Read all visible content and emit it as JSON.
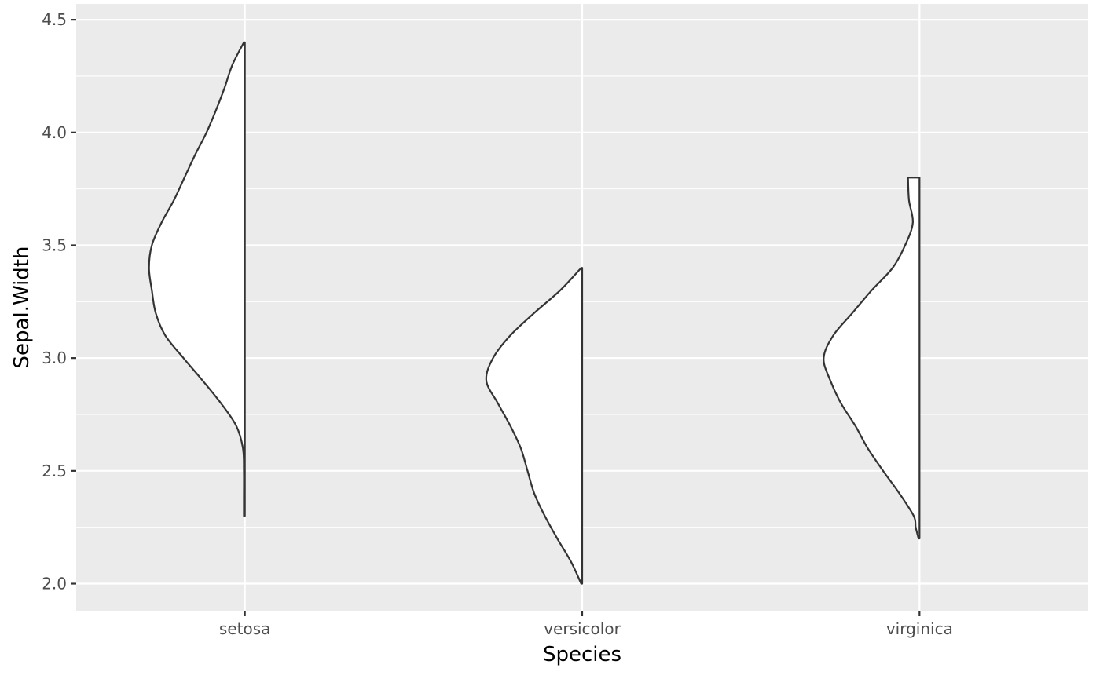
{
  "chart_data": {
    "type": "half-violin",
    "xlabel": "Species",
    "ylabel": "Sepal.Width",
    "categories": [
      "setosa",
      "versicolor",
      "virginica"
    ],
    "ylim": [
      1.88,
      4.57
    ],
    "yticks": [
      2.0,
      2.5,
      3.0,
      3.5,
      4.0,
      4.5
    ],
    "ytick_labels": [
      "2.0",
      "2.5",
      "3.0",
      "3.5",
      "4.0",
      "4.5"
    ],
    "grid": true,
    "panel_background": "#ebebeb",
    "fill_color": "#ffffff",
    "outline_color": "#333333",
    "series": [
      {
        "category": "setosa",
        "min": 2.3,
        "max": 4.4,
        "density_profile": [
          [
            2.3,
            0.01
          ],
          [
            2.38,
            0.01
          ],
          [
            2.5,
            0.01
          ],
          [
            2.6,
            0.02
          ],
          [
            2.7,
            0.09
          ],
          [
            2.8,
            0.25
          ],
          [
            2.9,
            0.44
          ],
          [
            3.0,
            0.64
          ],
          [
            3.1,
            0.83
          ],
          [
            3.2,
            0.93
          ],
          [
            3.3,
            0.97
          ],
          [
            3.4,
            1.0
          ],
          [
            3.5,
            0.97
          ],
          [
            3.6,
            0.87
          ],
          [
            3.7,
            0.74
          ],
          [
            3.8,
            0.63
          ],
          [
            3.9,
            0.52
          ],
          [
            4.0,
            0.4
          ],
          [
            4.1,
            0.3
          ],
          [
            4.2,
            0.21
          ],
          [
            4.3,
            0.13
          ],
          [
            4.4,
            0.01
          ]
        ]
      },
      {
        "category": "versicolor",
        "min": 2.0,
        "max": 3.4,
        "density_profile": [
          [
            2.0,
            0.01
          ],
          [
            2.1,
            0.12
          ],
          [
            2.2,
            0.26
          ],
          [
            2.3,
            0.39
          ],
          [
            2.4,
            0.5
          ],
          [
            2.5,
            0.57
          ],
          [
            2.6,
            0.64
          ],
          [
            2.7,
            0.75
          ],
          [
            2.8,
            0.88
          ],
          [
            2.9,
            1.0
          ],
          [
            3.0,
            0.93
          ],
          [
            3.1,
            0.75
          ],
          [
            3.2,
            0.5
          ],
          [
            3.3,
            0.23
          ],
          [
            3.4,
            0.01
          ]
        ]
      },
      {
        "category": "virginica",
        "min": 2.2,
        "max": 3.8,
        "density_profile": [
          [
            2.2,
            0.01
          ],
          [
            2.25,
            0.04
          ],
          [
            2.3,
            0.06
          ],
          [
            2.4,
            0.21
          ],
          [
            2.5,
            0.38
          ],
          [
            2.6,
            0.54
          ],
          [
            2.7,
            0.67
          ],
          [
            2.8,
            0.82
          ],
          [
            2.9,
            0.93
          ],
          [
            3.0,
            1.0
          ],
          [
            3.1,
            0.9
          ],
          [
            3.2,
            0.7
          ],
          [
            3.3,
            0.5
          ],
          [
            3.4,
            0.28
          ],
          [
            3.5,
            0.15
          ],
          [
            3.6,
            0.07
          ],
          [
            3.7,
            0.11
          ],
          [
            3.8,
            0.12
          ]
        ]
      }
    ]
  }
}
